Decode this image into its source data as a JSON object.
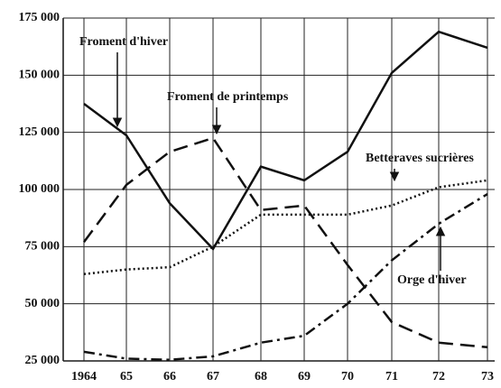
{
  "chart_data": {
    "type": "line",
    "categories": [
      "1964",
      "65",
      "66",
      "67",
      "68",
      "69",
      "70",
      "71",
      "72",
      "73"
    ],
    "series": [
      {
        "name": "Froment d'hiver",
        "color": "#111111",
        "style": "solid",
        "values": [
          137500,
          123700,
          94000,
          74000,
          110000,
          104000,
          116500,
          151000,
          169000,
          162000
        ]
      },
      {
        "name": "Froment de printemps",
        "color": "#111111",
        "style": "dashed",
        "values": [
          77000,
          102000,
          116500,
          122500,
          91000,
          93000,
          67000,
          42000,
          33000,
          31000
        ]
      },
      {
        "name": "Betteraves sucrières",
        "color": "#111111",
        "style": "dotted",
        "values": [
          63000,
          65000,
          66000,
          75000,
          89000,
          89000,
          89000,
          93000,
          101000,
          104000
        ]
      },
      {
        "name": "Orge d'hiver",
        "color": "#111111",
        "style": "dashdot",
        "values": [
          29000,
          26000,
          25500,
          27000,
          33000,
          36000,
          50000,
          69000,
          85000,
          98000
        ]
      }
    ],
    "ylim": [
      25000,
      175000
    ],
    "yticks": [
      {
        "value": 25000,
        "label": "25 000"
      },
      {
        "value": 50000,
        "label": "50 000"
      },
      {
        "value": 75000,
        "label": "75 000"
      },
      {
        "value": 100000,
        "label": "100 000"
      },
      {
        "value": 125000,
        "label": "125 000"
      },
      {
        "value": 150000,
        "label": "150 000"
      },
      {
        "value": 175000,
        "label": "175 000"
      }
    ],
    "grid": true
  }
}
